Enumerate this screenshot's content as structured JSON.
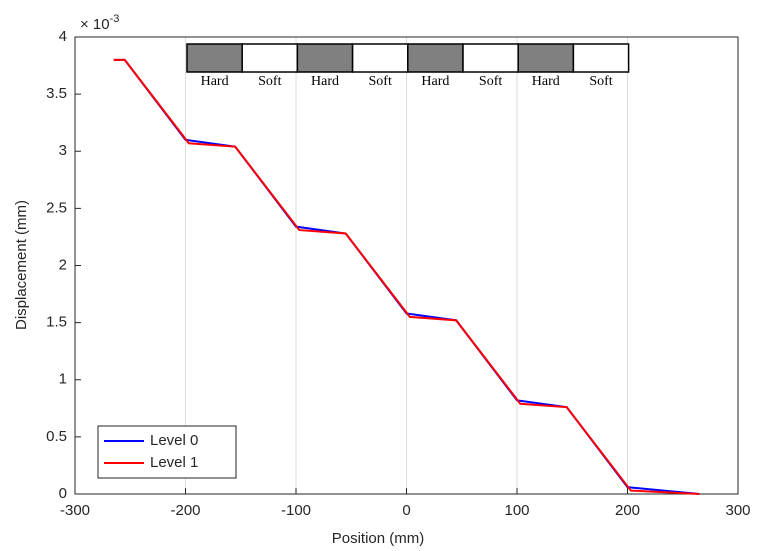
{
  "chart_data": {
    "type": "line",
    "x_label": "Position (mm)",
    "y_label": "Displacement (mm)",
    "exponent_base": "× 10",
    "exponent": "-3",
    "xlim": [
      -300,
      300
    ],
    "xticks": [
      -300,
      -200,
      -100,
      0,
      100,
      200,
      300
    ],
    "ylim": [
      0,
      4
    ],
    "yticks": [
      0,
      0.5,
      1,
      1.5,
      2,
      2.5,
      3,
      3.5,
      4
    ],
    "xgrid": true,
    "ygrid": false,
    "legend": "lower left",
    "series": [
      {
        "name": "Level 0",
        "color": "#0000ff",
        "x": [
          -265,
          -255,
          -200,
          -155,
          -100,
          -55,
          0,
          45,
          100,
          145,
          200,
          265
        ],
        "values": [
          3.8,
          3.8,
          3.1,
          3.04,
          2.34,
          2.28,
          1.58,
          1.52,
          0.82,
          0.76,
          0.06,
          0
        ]
      },
      {
        "name": "Level 1",
        "color": "#ff0000",
        "x": [
          -265,
          -255,
          -197,
          -155,
          -97,
          -55,
          3,
          45,
          103,
          145,
          203,
          265
        ],
        "values": [
          3.8,
          3.8,
          3.07,
          3.04,
          2.31,
          2.28,
          1.55,
          1.52,
          0.79,
          0.76,
          0.03,
          0
        ]
      }
    ],
    "strip_labels": [
      "Hard",
      "Soft",
      "Hard",
      "Soft",
      "Hard",
      "Soft",
      "Hard",
      "Soft"
    ]
  }
}
